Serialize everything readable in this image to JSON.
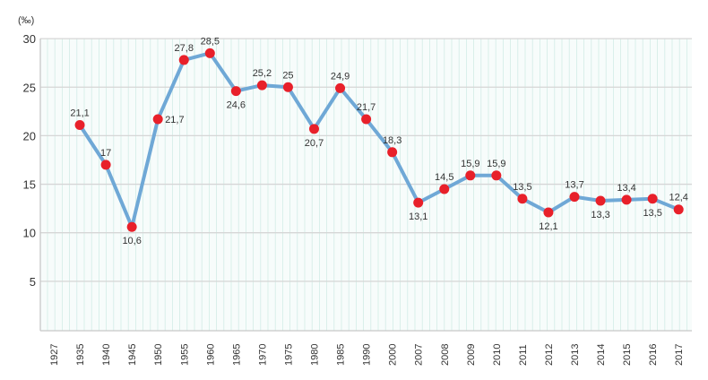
{
  "chart_data": {
    "type": "line",
    "title": "",
    "xlabel": "",
    "ylabel": "",
    "unit_label": "(‰)",
    "categories": [
      "1927",
      "1935",
      "1940",
      "1945",
      "1950",
      "1955",
      "1960",
      "1965",
      "1970",
      "1975",
      "1980",
      "1985",
      "1990",
      "2000",
      "2007",
      "2008",
      "2009",
      "2010",
      "2011",
      "2012",
      "2013",
      "2014",
      "2015",
      "2016",
      "2017"
    ],
    "series": [
      {
        "values": [
          null,
          21.1,
          17,
          10.6,
          21.7,
          27.8,
          28.5,
          24.6,
          25.2,
          25,
          20.7,
          24.9,
          21.7,
          18.3,
          13.1,
          14.5,
          15.9,
          15.9,
          13.5,
          12.1,
          13.7,
          13.3,
          13.4,
          13.5,
          12.4
        ],
        "labels": [
          null,
          "21,1",
          "17",
          "10,6",
          "21,7",
          "27,8",
          "28,5",
          "24,6",
          "25,2",
          "25",
          "20,7",
          "24,9",
          "21,7",
          "18,3",
          "13,1",
          "14,5",
          "15,9",
          "15,9",
          "13,5",
          "12,1",
          "13,7",
          "13,3",
          "13,4",
          "13,5",
          "12,4"
        ],
        "label_positions": [
          null,
          "above",
          "above",
          "below",
          "right",
          "above",
          "above",
          "below",
          "above",
          "above",
          "below",
          "above",
          "above",
          "above",
          "below",
          "above",
          "above",
          "above",
          "above",
          "below",
          "above",
          "below",
          "above",
          "below",
          "above"
        ]
      }
    ],
    "yticks": [
      "5",
      "10",
      "15",
      "20",
      "25",
      "30"
    ],
    "ylim": [
      0,
      30
    ],
    "grid": true,
    "colors": {
      "line": "#6fa8d6",
      "marker": "#e8202a",
      "grid_major": "#d6d6d6",
      "grid_minor": "#d2ece7",
      "plot_background": "#f7fcfb"
    }
  }
}
